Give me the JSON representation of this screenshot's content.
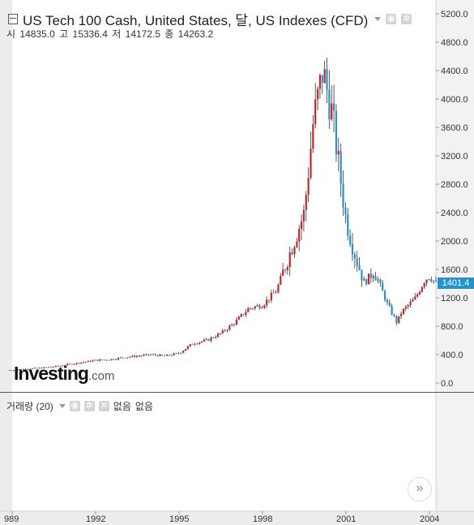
{
  "legend": {
    "title": "US Tech 100 Cash, United States, 달, US Indexes (CFD)",
    "ohlc": [
      {
        "label": "시",
        "value": "14835.0"
      },
      {
        "label": "고",
        "value": "15336.4"
      },
      {
        "label": "저",
        "value": "14172.5"
      },
      {
        "label": "종",
        "value": "14263.2"
      }
    ]
  },
  "volume": {
    "label": "거래량 (20)",
    "values_text": [
      "없음",
      "없음"
    ]
  },
  "logo": {
    "main": "Investing",
    "suffix": ".com"
  },
  "last_price": "1401.4",
  "colors": {
    "up": "#c0262b",
    "down": "#2a90c8",
    "wick": "#333333"
  },
  "chart_data": {
    "type": "candlestick",
    "title": "US Tech 100 Cash, United States, 달, US Indexes (CFD)",
    "x_tick_labels": [
      "989",
      "1992",
      "1995",
      "1998",
      "2001",
      "2004"
    ],
    "y_tick_labels": [
      "0.0",
      "400.0",
      "800.0",
      "1200.0",
      "1600.0",
      "2000.0",
      "2400.0",
      "2800.0",
      "3200.0",
      "3600.0",
      "4000.0",
      "4400.0",
      "4800.0",
      "5200.0"
    ],
    "ylim": [
      -100,
      5300
    ],
    "series": [
      {
        "x": 1989.0,
        "close": 180
      },
      {
        "x": 1989.5,
        "close": 200
      },
      {
        "x": 1990.0,
        "close": 210
      },
      {
        "x": 1990.5,
        "close": 230
      },
      {
        "x": 1991.0,
        "close": 260
      },
      {
        "x": 1991.5,
        "close": 290
      },
      {
        "x": 1992.0,
        "close": 320
      },
      {
        "x": 1992.5,
        "close": 330
      },
      {
        "x": 1993.0,
        "close": 360
      },
      {
        "x": 1993.5,
        "close": 380
      },
      {
        "x": 1994.0,
        "close": 400
      },
      {
        "x": 1994.5,
        "close": 380
      },
      {
        "x": 1995.0,
        "close": 420
      },
      {
        "x": 1995.5,
        "close": 560
      },
      {
        "x": 1996.0,
        "close": 600
      },
      {
        "x": 1996.5,
        "close": 700
      },
      {
        "x": 1997.0,
        "close": 850
      },
      {
        "x": 1997.5,
        "close": 1050
      },
      {
        "x": 1998.0,
        "close": 1100
      },
      {
        "x": 1998.5,
        "close": 1300
      },
      {
        "x": 1999.0,
        "close": 1850
      },
      {
        "x": 1999.5,
        "close": 2400
      },
      {
        "x": 1999.83,
        "close": 3700
      },
      {
        "x": 2000.17,
        "close": 4400
      },
      {
        "x": 2000.5,
        "close": 3800
      },
      {
        "x": 2000.83,
        "close": 2800
      },
      {
        "x": 2001.0,
        "close": 2300
      },
      {
        "x": 2001.33,
        "close": 1800
      },
      {
        "x": 2001.67,
        "close": 1400
      },
      {
        "x": 2002.0,
        "close": 1600
      },
      {
        "x": 2002.5,
        "close": 1100
      },
      {
        "x": 2002.83,
        "close": 850
      },
      {
        "x": 2003.0,
        "close": 1000
      },
      {
        "x": 2003.5,
        "close": 1200
      },
      {
        "x": 2003.83,
        "close": 1450
      },
      {
        "x": 2004.0,
        "close": 1500
      },
      {
        "x": 2004.25,
        "close": 1401.4
      }
    ]
  }
}
